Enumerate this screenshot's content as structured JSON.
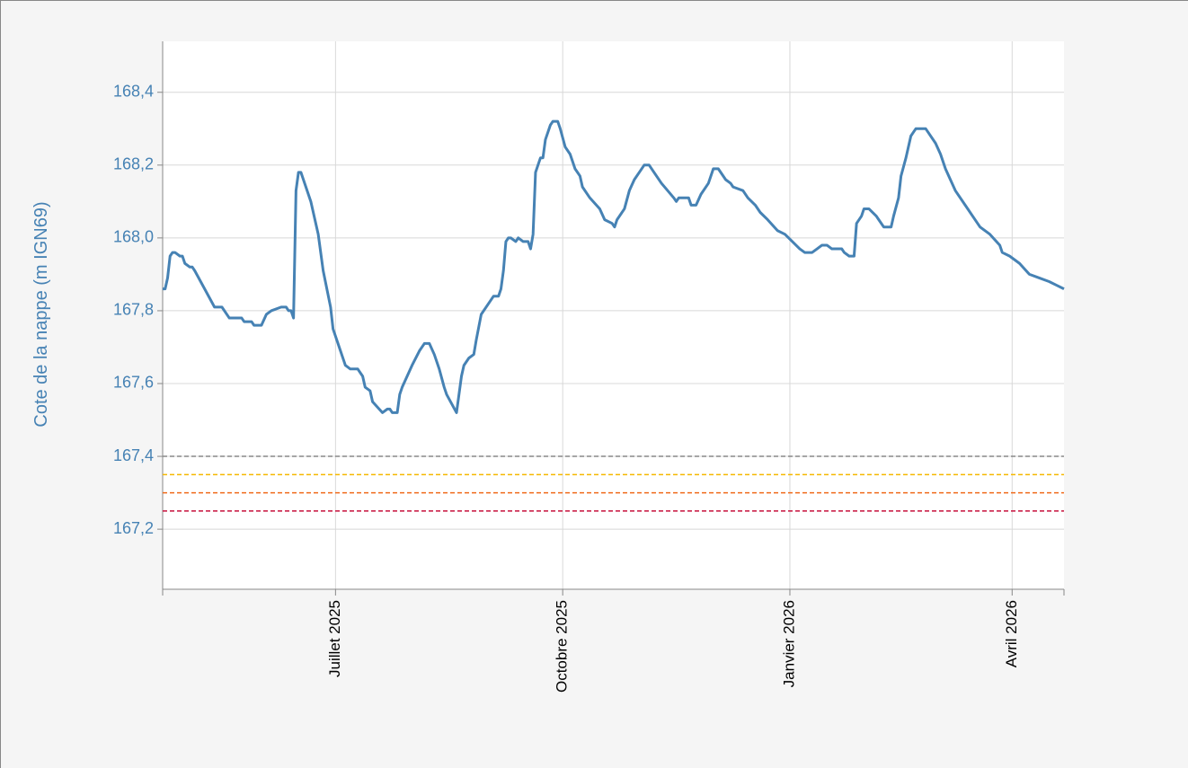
{
  "chart_data": {
    "type": "line",
    "y_label": "Cote de la nappe (m IGN69)",
    "xlim": [
      "2025-04-22",
      "2026-04-22"
    ],
    "xticks": [
      {
        "value": "2025-07-01",
        "label": "Juillet 2025"
      },
      {
        "value": "2025-10-01",
        "label": "Octobre 2025"
      },
      {
        "value": "2026-01-01",
        "label": "Janvier 2026"
      },
      {
        "value": "2026-04-01",
        "label": "Avril 2026"
      }
    ],
    "ylim": [
      167.035,
      168.54
    ],
    "yticks": [
      {
        "value": 167.2,
        "label": "167,2"
      },
      {
        "value": 167.4,
        "label": "167,4"
      },
      {
        "value": 167.6,
        "label": "167,6"
      },
      {
        "value": 167.8,
        "label": "167,8"
      },
      {
        "value": 168,
        "label": "168,0"
      },
      {
        "value": 168.2,
        "label": "168,2"
      },
      {
        "value": 168.4,
        "label": "168,4"
      }
    ],
    "grid": true,
    "thresholds": [
      {
        "value": 167.4,
        "color": "#888888"
      },
      {
        "value": 167.35,
        "color": "#f5b800"
      },
      {
        "value": 167.3,
        "color": "#f06a1a"
      },
      {
        "value": 167.25,
        "color": "#c8103c"
      }
    ],
    "x": [
      "2025-04-22",
      "2025-04-23",
      "2025-04-24",
      "2025-04-25",
      "2025-04-26",
      "2025-04-27",
      "2025-04-29",
      "2025-04-30",
      "2025-05-01",
      "2025-05-03",
      "2025-05-04",
      "2025-05-05",
      "2025-05-09",
      "2025-05-13",
      "2025-05-16",
      "2025-05-19",
      "2025-05-24",
      "2025-05-25",
      "2025-05-28",
      "2025-05-29",
      "2025-06-01",
      "2025-06-03",
      "2025-06-05",
      "2025-06-09",
      "2025-06-11",
      "2025-06-12",
      "2025-06-13",
      "2025-06-14",
      "2025-06-15",
      "2025-06-16",
      "2025-06-17",
      "2025-06-18",
      "2025-06-21",
      "2025-06-24",
      "2025-06-26",
      "2025-06-29",
      "2025-06-30",
      "2025-07-03",
      "2025-07-05",
      "2025-07-07",
      "2025-07-10",
      "2025-07-12",
      "2025-07-13",
      "2025-07-15",
      "2025-07-16",
      "2025-07-20",
      "2025-07-22",
      "2025-07-23",
      "2025-07-24",
      "2025-07-26",
      "2025-07-27",
      "2025-07-28",
      "2025-07-30",
      "2025-08-01",
      "2025-08-04",
      "2025-08-06",
      "2025-08-08",
      "2025-08-10",
      "2025-08-12",
      "2025-08-14",
      "2025-08-15",
      "2025-08-19",
      "2025-08-21",
      "2025-08-22",
      "2025-08-24",
      "2025-08-26",
      "2025-08-27",
      "2025-08-29",
      "2025-09-01",
      "2025-09-03",
      "2025-09-05",
      "2025-09-06",
      "2025-09-07",
      "2025-09-08",
      "2025-09-09",
      "2025-09-10",
      "2025-09-12",
      "2025-09-13",
      "2025-09-15",
      "2025-09-17",
      "2025-09-18",
      "2025-09-19",
      "2025-09-20",
      "2025-09-22",
      "2025-09-23",
      "2025-09-24",
      "2025-09-26",
      "2025-09-27",
      "2025-09-29",
      "2025-09-30",
      "2025-10-02",
      "2025-10-04",
      "2025-10-06",
      "2025-10-08",
      "2025-10-09",
      "2025-10-12",
      "2025-10-16",
      "2025-10-18",
      "2025-10-21",
      "2025-10-22",
      "2025-10-23",
      "2025-10-26",
      "2025-10-28",
      "2025-10-30",
      "2025-11-01",
      "2025-11-03",
      "2025-11-05",
      "2025-11-07",
      "2025-11-10",
      "2025-11-15",
      "2025-11-16",
      "2025-11-17",
      "2025-11-21",
      "2025-11-22",
      "2025-11-24",
      "2025-11-26",
      "2025-11-29",
      "2025-12-01",
      "2025-12-03",
      "2025-12-06",
      "2025-12-08",
      "2025-12-09",
      "2025-12-13",
      "2025-12-15",
      "2025-12-18",
      "2025-12-20",
      "2025-12-23",
      "2025-12-27",
      "2025-12-30",
      "2026-01-02",
      "2026-01-05",
      "2026-01-07",
      "2026-01-10",
      "2026-01-12",
      "2026-01-14",
      "2026-01-16",
      "2026-01-18",
      "2026-01-22",
      "2026-01-23",
      "2026-01-25",
      "2026-01-27",
      "2026-01-28",
      "2026-01-30",
      "2026-01-31",
      "2026-02-02",
      "2026-02-05",
      "2026-02-06",
      "2026-02-08",
      "2026-02-11",
      "2026-02-12",
      "2026-02-14",
      "2026-02-15",
      "2026-02-17",
      "2026-02-19",
      "2026-02-20",
      "2026-02-21",
      "2026-02-25",
      "2026-02-26",
      "2026-03-01",
      "2026-03-03",
      "2026-03-05",
      "2026-03-07",
      "2026-03-09",
      "2026-03-13",
      "2026-03-16",
      "2026-03-19",
      "2026-03-23",
      "2026-03-27",
      "2026-03-28",
      "2026-03-31",
      "2026-04-04",
      "2026-04-08",
      "2026-04-12",
      "2026-04-16",
      "2026-04-19",
      "2026-04-22"
    ],
    "series": [
      {
        "color": "#4682b4",
        "values": [
          167.86,
          167.86,
          167.89,
          167.95,
          167.96,
          167.96,
          167.95,
          167.95,
          167.93,
          167.92,
          167.92,
          167.91,
          167.86,
          167.81,
          167.81,
          167.78,
          167.78,
          167.77,
          167.77,
          167.76,
          167.76,
          167.79,
          167.8,
          167.81,
          167.81,
          167.8,
          167.8,
          167.78,
          168.13,
          168.18,
          168.18,
          168.16,
          168.1,
          168.01,
          167.91,
          167.81,
          167.75,
          167.69,
          167.65,
          167.64,
          167.64,
          167.62,
          167.59,
          167.58,
          167.55,
          167.52,
          167.53,
          167.53,
          167.52,
          167.52,
          167.57,
          167.59,
          167.62,
          167.65,
          167.69,
          167.71,
          167.71,
          167.68,
          167.64,
          167.59,
          167.57,
          167.52,
          167.62,
          167.65,
          167.67,
          167.68,
          167.72,
          167.79,
          167.82,
          167.84,
          167.84,
          167.86,
          167.91,
          167.99,
          168.0,
          168.0,
          167.99,
          168.0,
          167.99,
          167.99,
          167.97,
          168.01,
          168.18,
          168.22,
          168.22,
          168.27,
          168.31,
          168.32,
          168.32,
          168.3,
          168.25,
          168.23,
          168.19,
          168.17,
          168.14,
          168.11,
          168.08,
          168.05,
          168.04,
          168.03,
          168.05,
          168.08,
          168.13,
          168.16,
          168.18,
          168.2,
          168.2,
          168.18,
          168.15,
          168.11,
          168.1,
          168.11,
          168.11,
          168.09,
          168.09,
          168.12,
          168.15,
          168.19,
          168.19,
          168.16,
          168.15,
          168.14,
          168.13,
          168.11,
          168.09,
          168.07,
          168.05,
          168.02,
          168.01,
          167.99,
          167.97,
          167.96,
          167.96,
          167.97,
          167.98,
          167.98,
          167.97,
          167.97,
          167.96,
          167.95,
          167.95,
          168.04,
          168.06,
          168.08,
          168.08,
          168.06,
          168.05,
          168.03,
          168.03,
          168.06,
          168.11,
          168.17,
          168.22,
          168.28,
          168.29,
          168.3,
          168.3,
          168.29,
          168.26,
          168.23,
          168.19,
          168.16,
          168.13,
          168.09,
          168.06,
          168.03,
          168.01,
          167.98,
          167.96,
          167.95,
          167.93,
          167.9,
          167.89,
          167.88,
          167.87,
          167.86
        ]
      }
    ]
  }
}
